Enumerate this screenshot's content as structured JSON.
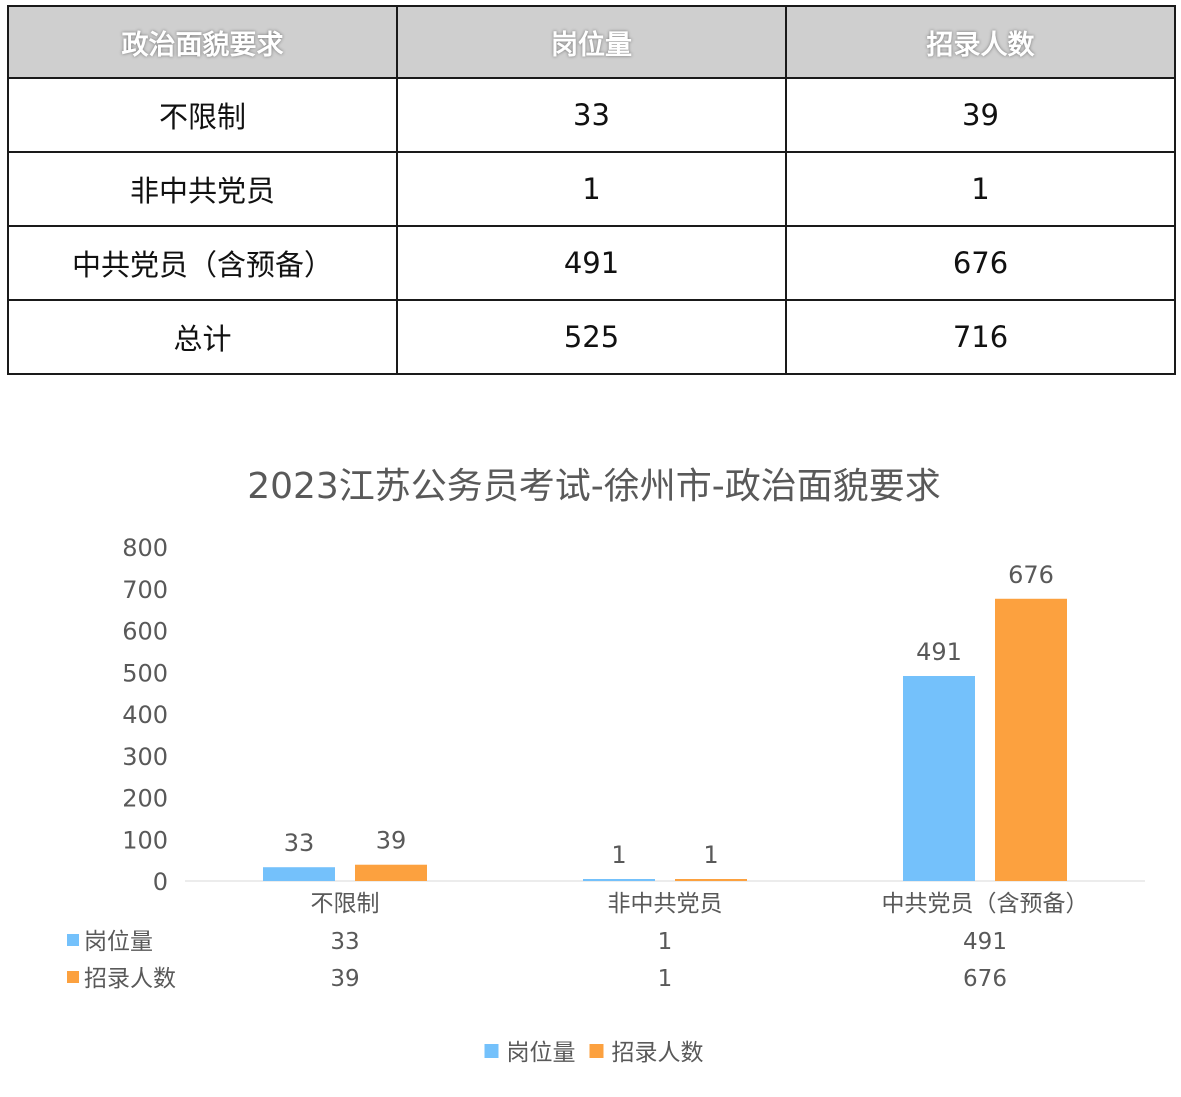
{
  "table": {
    "headers": [
      "政治面貌要求",
      "岗位量",
      "招录人数"
    ],
    "rows": [
      [
        "不限制",
        "33",
        "39"
      ],
      [
        "非中共党员",
        "1",
        "1"
      ],
      [
        "中共党员（含预备）",
        "491",
        "676"
      ],
      [
        "总计",
        "525",
        "716"
      ]
    ]
  },
  "colors": {
    "series_1": "#74c1fb",
    "series_2": "#fca13f",
    "axis_text": "#595959",
    "title_text": "#595959"
  },
  "chart_data": {
    "type": "bar",
    "title": "2023江苏公务员考试-徐州市-政治面貌要求",
    "categories": [
      "不限制",
      "非中共党员",
      "中共党员（含预备）"
    ],
    "series": [
      {
        "name": "岗位量",
        "values": [
          33,
          1,
          491
        ]
      },
      {
        "name": "招录人数",
        "values": [
          39,
          1,
          676
        ]
      }
    ],
    "ylim": [
      0,
      800
    ],
    "yticks": [
      0,
      100,
      200,
      300,
      400,
      500,
      600,
      700,
      800
    ],
    "grid": false,
    "data_labels": true,
    "data_table": true,
    "legend": "bottom"
  }
}
